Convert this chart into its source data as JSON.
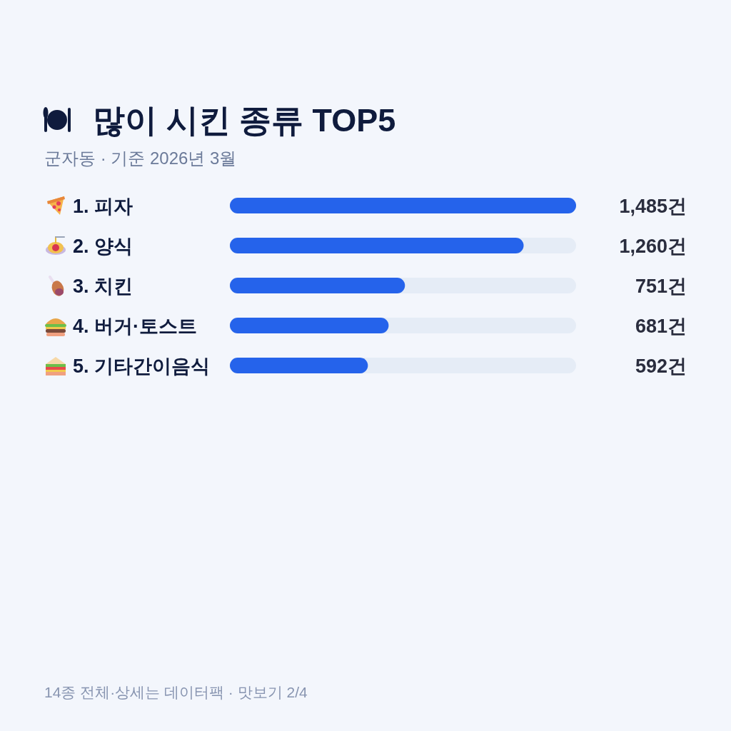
{
  "chart_data": {
    "type": "bar",
    "orientation": "horizontal",
    "title": "많이 시킨 종류 TOP5",
    "subtitle": "군자동 · 기준 2026년 3월",
    "categories": [
      "1. 피자",
      "2. 양식",
      "3. 치킨",
      "4. 버거·토스트",
      "5. 기타간이음식"
    ],
    "values": [
      1485,
      1260,
      751,
      681,
      592
    ],
    "value_labels": [
      "1,485건",
      "1,260건",
      "751건",
      "681건",
      "592건"
    ],
    "color": "#2563eb",
    "annotations": [
      "14종 전체·상세는 데이터팩 · 맛보기 2/4"
    ]
  }
}
